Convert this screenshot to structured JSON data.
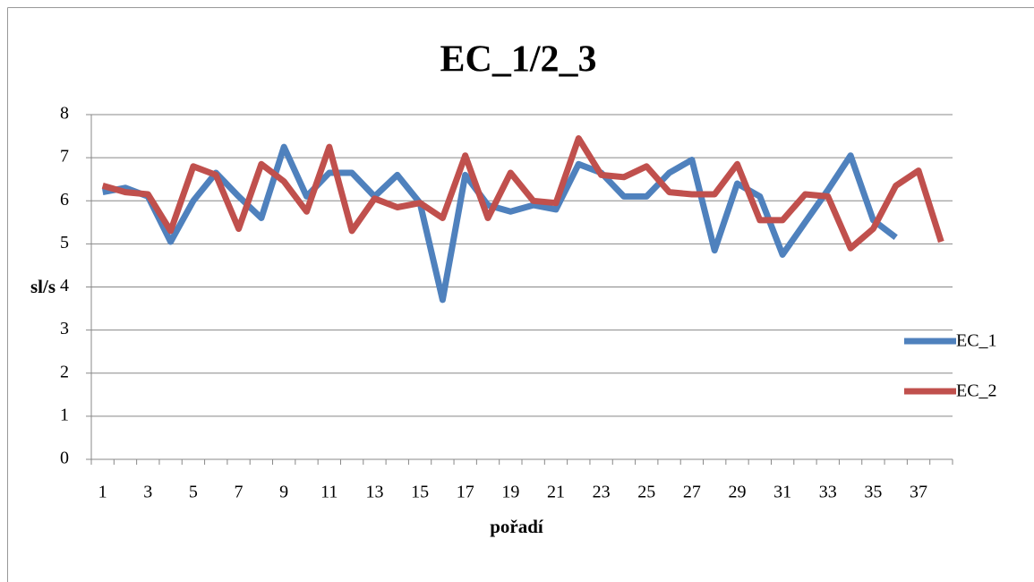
{
  "chart_data": {
    "type": "line",
    "title": "EC_1/2_3",
    "x_label": "pořadí",
    "y_label": "sl/s",
    "categories": [
      "1",
      null,
      "3",
      null,
      "5",
      null,
      "7",
      null,
      "9",
      null,
      "11",
      null,
      "13",
      null,
      "15",
      null,
      "17",
      null,
      "19",
      null,
      "21",
      null,
      "23",
      null,
      "25",
      null,
      "27",
      null,
      "29",
      null,
      "31",
      null,
      "33",
      null,
      "35",
      null,
      "37",
      null
    ],
    "series": [
      {
        "name": "EC_1",
        "color": "#4f81bd",
        "values": [
          6.2,
          6.3,
          6.1,
          5.05,
          6.0,
          6.65,
          6.1,
          5.6,
          7.25,
          6.1,
          6.65,
          6.65,
          6.1,
          6.6,
          5.95,
          3.7,
          6.6,
          5.9,
          5.75,
          5.9,
          5.8,
          6.85,
          6.65,
          6.1,
          6.1,
          6.65,
          6.95,
          4.85,
          6.4,
          6.1,
          4.75,
          5.5,
          6.25,
          7.05,
          5.55,
          5.15,
          null,
          null
        ]
      },
      {
        "name": "EC_2",
        "color": "#c0504d",
        "values": [
          6.35,
          6.2,
          6.15,
          5.3,
          6.8,
          6.6,
          5.35,
          6.85,
          6.45,
          5.75,
          7.25,
          5.3,
          6.05,
          5.85,
          5.95,
          5.6,
          7.05,
          5.6,
          6.65,
          6.0,
          5.95,
          7.45,
          6.6,
          6.55,
          6.8,
          6.2,
          6.15,
          6.15,
          6.85,
          5.55,
          5.55,
          6.15,
          6.1,
          4.9,
          5.35,
          6.35,
          6.7,
          5.05
        ]
      }
    ],
    "ylim": [
      0,
      8
    ],
    "yticks": [
      0,
      1,
      2,
      3,
      4,
      5,
      6,
      7,
      8
    ],
    "grid": true,
    "legend": "right"
  }
}
